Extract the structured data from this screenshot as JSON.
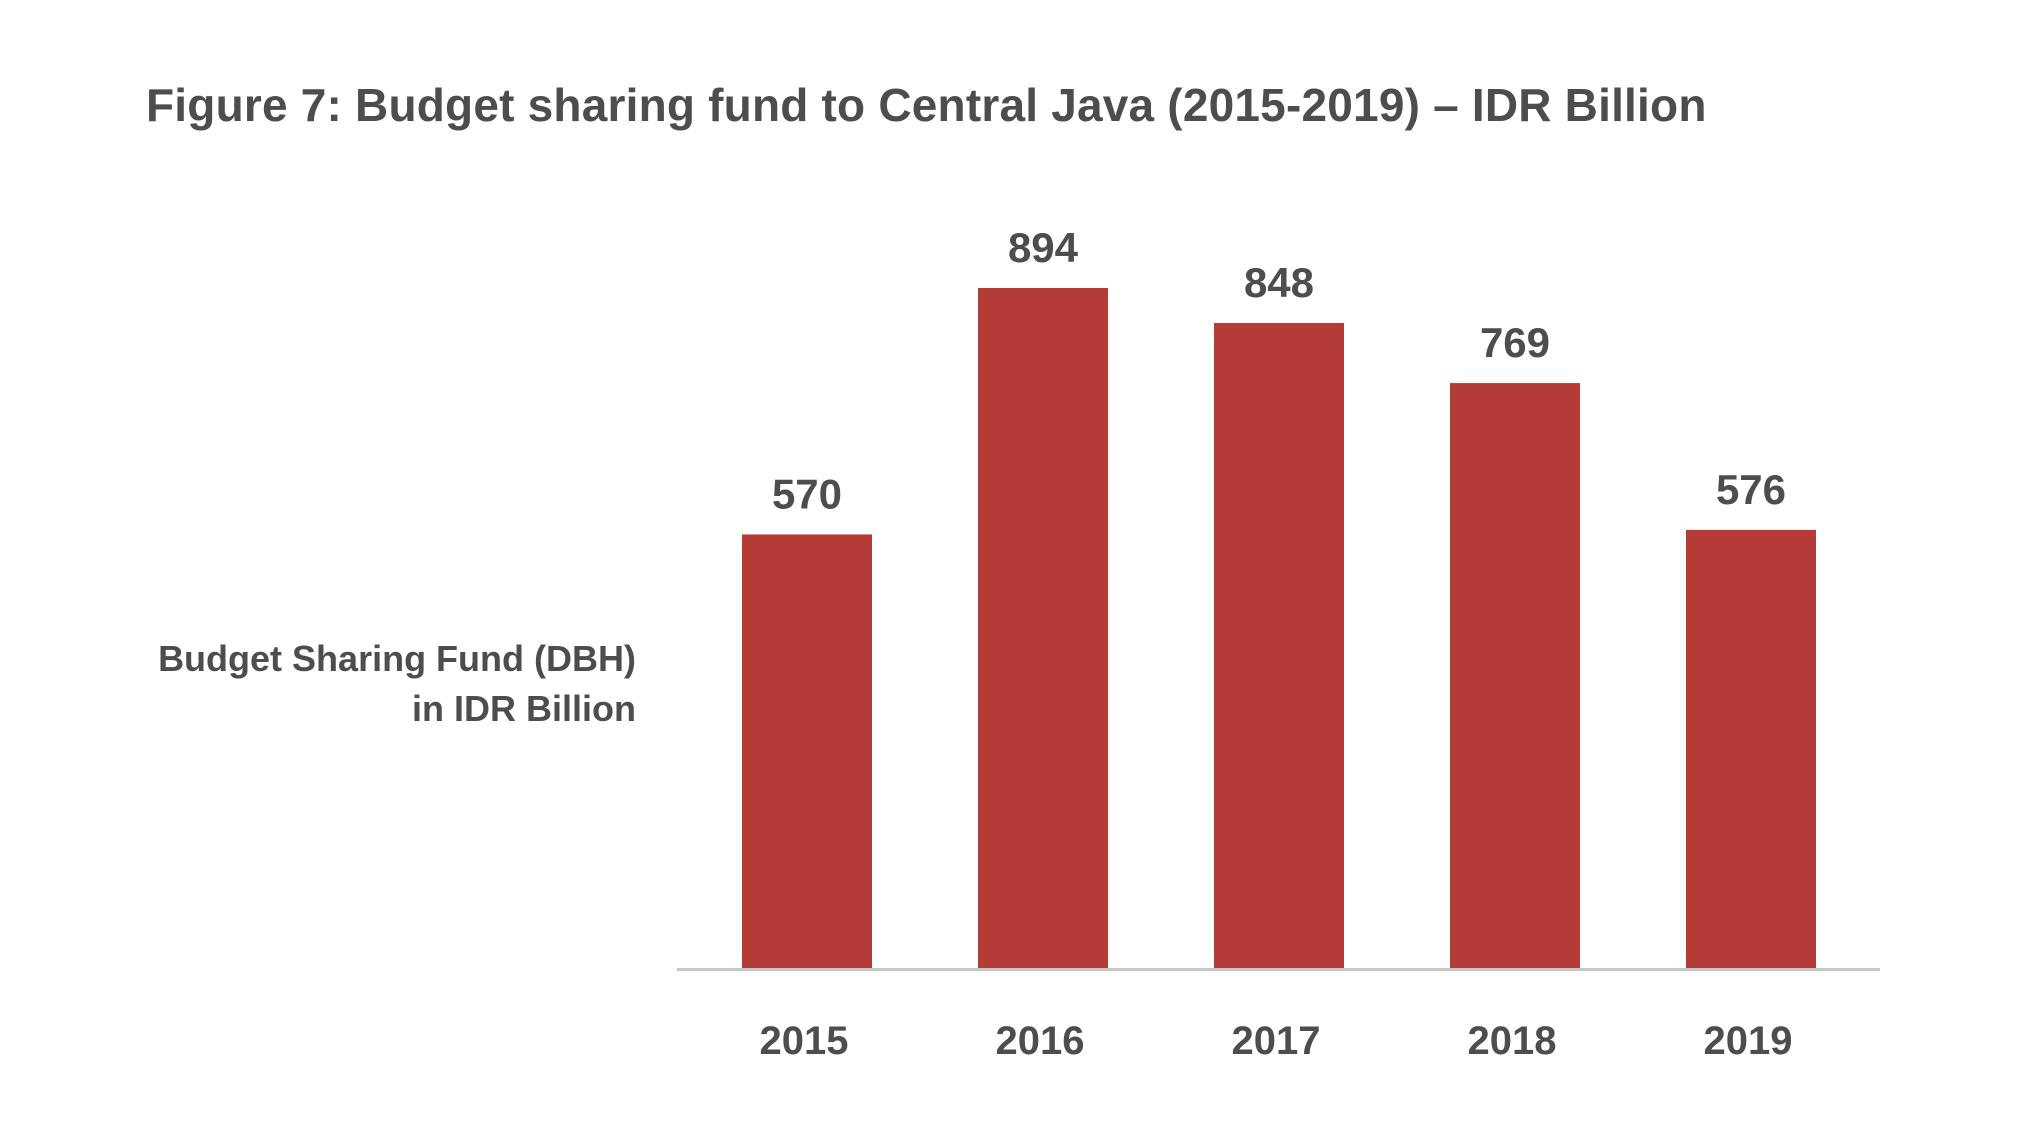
{
  "chart_data": {
    "type": "bar",
    "title": "Figure 7: Budget sharing fund to Central Java (2015-2019) – IDR Billion",
    "series_label_lines": [
      "Budget Sharing Fund (DBH)",
      "in IDR Billion"
    ],
    "categories": [
      "2015",
      "2016",
      "2017",
      "2018",
      "2019"
    ],
    "values": [
      570,
      894,
      848,
      769,
      576
    ],
    "value_labels": [
      "570",
      "894",
      "848",
      "769",
      "576"
    ],
    "ylim": [
      0,
      894
    ],
    "grid": false,
    "bar_color": "#b53b36",
    "axis_color": "#c8c8c8"
  }
}
